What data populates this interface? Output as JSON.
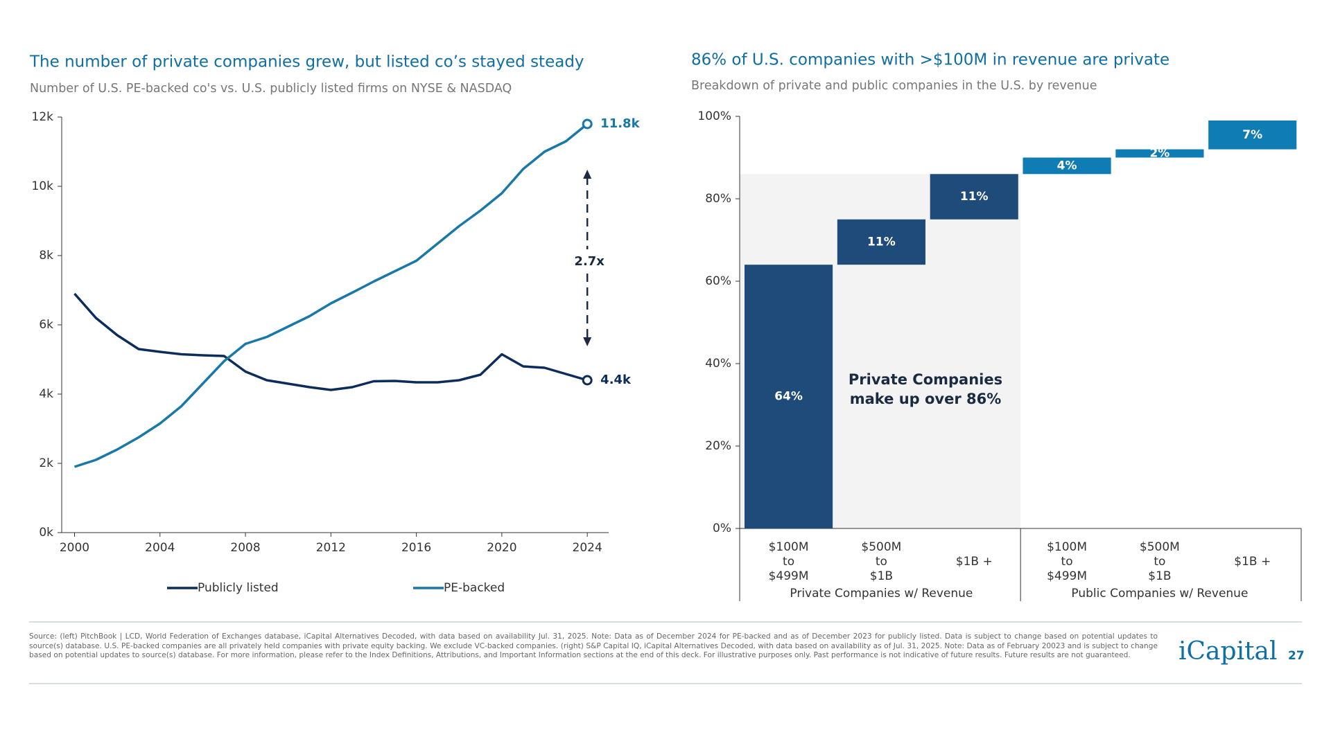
{
  "chart_data": [
    {
      "type": "line",
      "title": "The number of private companies grew, but listed co’s stayed steady",
      "subtitle": "Number of U.S. PE-backed co's vs. U.S. publicly listed firms on NYSE & NASDAQ",
      "x": [
        2000,
        2001,
        2002,
        2003,
        2004,
        2005,
        2006,
        2007,
        2008,
        2009,
        2010,
        2011,
        2012,
        2013,
        2014,
        2015,
        2016,
        2017,
        2018,
        2019,
        2020,
        2021,
        2022,
        2023,
        2024
      ],
      "xlim": [
        1999.4,
        2025
      ],
      "xticks": [
        2000,
        2004,
        2008,
        2012,
        2016,
        2020,
        2024
      ],
      "ylim": [
        0,
        12
      ],
      "yticks": [
        {
          "value": 0,
          "label": "0k"
        },
        {
          "value": 2,
          "label": "2k"
        },
        {
          "value": 4,
          "label": "4k"
        },
        {
          "value": 6,
          "label": "6k"
        },
        {
          "value": 8,
          "label": "8k"
        },
        {
          "value": 10,
          "label": "10k"
        },
        {
          "value": 12,
          "label": "12k"
        }
      ],
      "series": [
        {
          "name": "Publicly listed",
          "color": "#0c2d5b",
          "values": [
            6.9,
            6.2,
            5.7,
            5.3,
            5.22,
            5.15,
            5.12,
            5.1,
            4.65,
            4.4,
            4.3,
            4.2,
            4.12,
            4.2,
            4.37,
            4.38,
            4.34,
            4.34,
            4.4,
            4.56,
            5.15,
            4.8,
            4.76,
            4.58,
            4.4
          ],
          "value_labels": [
            null,
            null,
            null,
            null,
            null,
            null,
            null,
            null,
            null,
            null,
            null,
            null,
            null,
            null,
            null,
            null,
            null,
            null,
            null,
            null,
            null,
            null,
            null,
            null,
            "4.4k"
          ]
        },
        {
          "name": "PE-backed",
          "color": "#1878a8",
          "values": [
            1.9,
            2.1,
            2.4,
            2.75,
            3.15,
            3.65,
            4.3,
            4.95,
            5.45,
            5.65,
            5.95,
            6.25,
            6.62,
            6.93,
            7.25,
            7.55,
            7.85,
            8.35,
            8.85,
            9.3,
            9.8,
            10.5,
            11.0,
            11.3,
            11.8
          ],
          "value_labels": [
            null,
            null,
            null,
            null,
            null,
            null,
            null,
            null,
            null,
            null,
            null,
            null,
            null,
            null,
            null,
            null,
            null,
            null,
            null,
            null,
            null,
            null,
            null,
            null,
            "11.8k"
          ]
        }
      ],
      "annotation": "2.7x"
    },
    {
      "type": "waterfall",
      "title": "86% of U.S. companies with >$100M in revenue are private",
      "subtitle": "Breakdown of private and public companies in the U.S. by revenue",
      "categories": [
        [
          "$100M",
          "to",
          "$499M"
        ],
        [
          "$500M",
          "to",
          "$1B"
        ],
        [
          "$1B +"
        ],
        [
          "$100M",
          "to",
          "$499M"
        ],
        [
          "$500M",
          "to",
          "$1B"
        ],
        [
          "$1B +"
        ]
      ],
      "values": [
        64,
        11,
        11,
        4,
        2,
        7
      ],
      "value_labels": [
        "64%",
        "11%",
        "11%",
        "4%",
        "2%",
        "7%"
      ],
      "colors": [
        "#1f4b7a",
        "#1f4b7a",
        "#1f4b7a",
        "#0f7db3",
        "#0f7db3",
        "#0f7db3"
      ],
      "groups": [
        {
          "label": "Private Companies w/ Revenue",
          "size": 3
        },
        {
          "label": "Public Companies w/ Revenue",
          "size": 3
        }
      ],
      "annotation": [
        "Private Companies",
        "make up over 86%"
      ],
      "ylim": [
        0,
        100
      ],
      "yticks": [
        {
          "value": 0,
          "label": "0%"
        },
        {
          "value": 20,
          "label": "20%"
        },
        {
          "value": 40,
          "label": "40%"
        },
        {
          "value": 60,
          "label": "60%"
        },
        {
          "value": 80,
          "label": "80%"
        },
        {
          "value": 100,
          "label": "100%"
        }
      ]
    }
  ],
  "footer": {
    "source": "Source: (left) PitchBook | LCD, World Federation of Exchanges database, iCapital Alternatives Decoded, with data based on availability Jul. 31, 2025. Note: Data as of December 2024 for PE-backed and as of December 2023 for publicly listed. Data is subject to change based on potential updates to source(s) database. U.S. PE-backed companies are all privately held companies with private equity backing. We exclude VC-backed companies. (right) S&P Capital IQ, iCapital Alternatives Decoded, with data based on availability as of Jul. 31, 2025. Note: Data as of February 20023 and is subject to change based on potential updates to source(s) database. For more information, please refer to the Index Definitions, Attributions, and Important Information sections at the end of this deck. For illustrative purposes only. Past performance is not indicative of future results. Future results are not guaranteed.",
    "logo": "iCapital",
    "page": "27"
  }
}
